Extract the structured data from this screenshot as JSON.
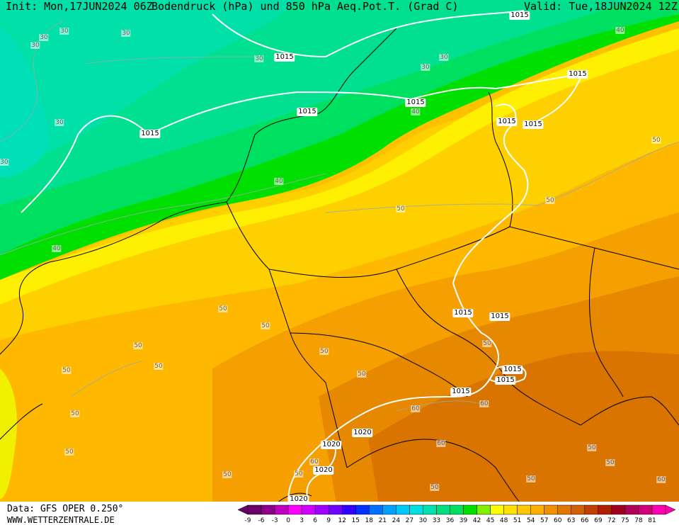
{
  "header": {
    "init": "Init: Mon,17JUN2024 06Z",
    "title": "Bodendruck (hPa) und 850 hPa Aeq.Pot.T. (Grad C)",
    "valid": "Valid: Tue,18JUN2024 12Z"
  },
  "footer": {
    "data_source": "Data: GFS OPER 0.250°",
    "website": "WWW.WETTERZENTRALE.DE"
  },
  "colorbar": {
    "ticks": [
      "-9",
      "-6",
      "-3",
      "0",
      "3",
      "6",
      "9",
      "12",
      "15",
      "18",
      "21",
      "24",
      "27",
      "30",
      "33",
      "36",
      "39",
      "42",
      "45",
      "48",
      "51",
      "54",
      "57",
      "60",
      "63",
      "66",
      "69",
      "72",
      "75",
      "78",
      "81"
    ],
    "colors": [
      "#6a006a",
      "#8c008c",
      "#c000c0",
      "#ff00ff",
      "#d000ff",
      "#a000ff",
      "#7000ff",
      "#3000ff",
      "#0030ff",
      "#0070ff",
      "#00a0ff",
      "#00c8ff",
      "#00e0e0",
      "#00e0b0",
      "#00e080",
      "#00e060",
      "#00e000",
      "#80f000",
      "#ffff00",
      "#ffe000",
      "#ffc800",
      "#ffb000",
      "#f09000",
      "#e07800",
      "#d06000",
      "#c04000",
      "#b02000",
      "#a00020",
      "#b0005a",
      "#d0007a",
      "#ff00b0"
    ]
  },
  "pressure_labels": {
    "p1015": "1015",
    "p1020": "1020"
  },
  "theta_labels": {
    "t30": "30",
    "t40": "40",
    "t50": "50",
    "t60": "60"
  }
}
